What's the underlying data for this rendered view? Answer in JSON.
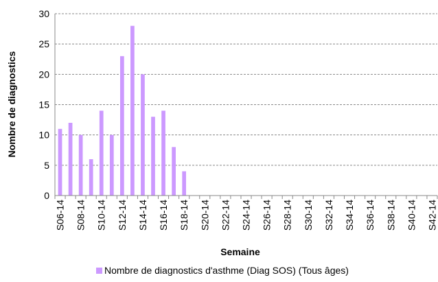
{
  "chart_data": {
    "type": "bar",
    "title": "",
    "xlabel": "Semaine",
    "ylabel": "Nombre de diagnostics",
    "ylim": [
      0,
      30
    ],
    "yticks": [
      0,
      5,
      10,
      15,
      20,
      25,
      30
    ],
    "grid": true,
    "legend_position": "bottom",
    "bar_color": "#cc99ff",
    "categories": [
      "S06-14",
      "S07-14",
      "S08-14",
      "S09-14",
      "S10-14",
      "S11-14",
      "S12-14",
      "S13-14",
      "S14-14",
      "S15-14",
      "S16-14",
      "S17-14",
      "S18-14",
      "S19-14",
      "S20-14",
      "S21-14",
      "S22-14",
      "S23-14",
      "S24-14",
      "S25-14",
      "S26-14",
      "S27-14",
      "S28-14",
      "S29-14",
      "S30-14",
      "S31-14",
      "S32-14",
      "S33-14",
      "S34-14",
      "S35-14",
      "S36-14",
      "S37-14",
      "S38-14",
      "S39-14",
      "S40-14",
      "S41-14",
      "S42-14"
    ],
    "tick_labels_shown": [
      "S06-14",
      "S08-14",
      "S10-14",
      "S12-14",
      "S14-14",
      "S16-14",
      "S18-14",
      "S20-14",
      "S22-14",
      "S24-14",
      "S26-14",
      "S28-14",
      "S30-14",
      "S32-14",
      "S34-14",
      "S36-14",
      "S38-14",
      "S40-14",
      "S42-14"
    ],
    "series": [
      {
        "name": "Nombre de diagnostics d'asthme (Diag SOS) (Tous âges)",
        "values": [
          11,
          12,
          10,
          6,
          14,
          10,
          23,
          28,
          20,
          13,
          14,
          8,
          4,
          null,
          null,
          null,
          null,
          null,
          null,
          null,
          null,
          null,
          null,
          null,
          null,
          null,
          null,
          null,
          null,
          null,
          null,
          null,
          null,
          null,
          null,
          null,
          null
        ]
      }
    ]
  }
}
